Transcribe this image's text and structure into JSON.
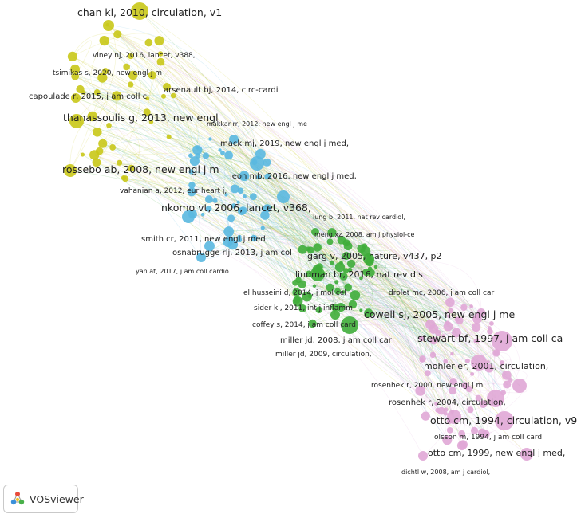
{
  "app": {
    "name": "VOSviewer"
  },
  "colors": {
    "yellow_cluster": "#c9c818",
    "blue_cluster": "#5ab8e0",
    "green_cluster": "#3fad3a",
    "pink_cluster": "#e0a7d6"
  },
  "labels": {
    "chan": "chan kl, 2010, circulation, v1",
    "viney": "viney nj, 2016, lancet, v388,",
    "tsimikas": "tsimikas s, 2020, new engl j m",
    "arsenault": "arsenault bj, 2014, circ-cardi",
    "capoulade": "capoulade r, 2015, j am coll c",
    "thanassoulis": "thanassoulis g, 2013, new engl",
    "makkar": "makkar rr, 2012, new engl j me",
    "mack": "mack mj, 2019, new engl j med,",
    "rossebo": "rossebo ab, 2008, new engl j m",
    "leon": "leon mb, 2016, new engl j med,",
    "vahanian": "vahanian a, 2012, eur heart j,",
    "nkomo": "nkomo vt, 2006, lancet, v368,",
    "iung": "iung b, 2011, nat rev cardiol,",
    "meng": "meng xz, 2008, am j physiol-ce",
    "smith": "smith cr, 2011, new engl j med",
    "osnabrugge": "osnabrugge rlj, 2013, j am col",
    "garg": "garg v, 2005, nature, v437, p2",
    "yan": "yan at, 2017, j am coll cardio",
    "lindman": "lindman br, 2016, nat rev dis",
    "drolet": "drolet mc, 2006, j am coll car",
    "elhusseini": "el husseini d, 2014, j mol cel",
    "cowell": "cowell sj, 2005, new engl j me",
    "sider": "sider kl, 2011, int j inflamm,",
    "coffey": "coffey s, 2014, j am coll card",
    "stewart": "stewart bf, 1997, j am coll ca",
    "miller2008": "miller jd, 2008, j am coll car",
    "miller2009": "miller jd, 2009, circulation,",
    "mohler": "mohler er, 2001, circulation,",
    "rosenhek2000": "rosenhek r, 2000, new engl j m",
    "rosenhek2004": "rosenhek r, 2004, circulation,",
    "otto1994": "otto cm, 1994, circulation, v9",
    "olsson": "olsson m, 1994, j am coll card",
    "otto1999": "otto cm, 1999, new engl j med,",
    "dichtl": "dichtl w, 2008, am j cardiol,"
  }
}
